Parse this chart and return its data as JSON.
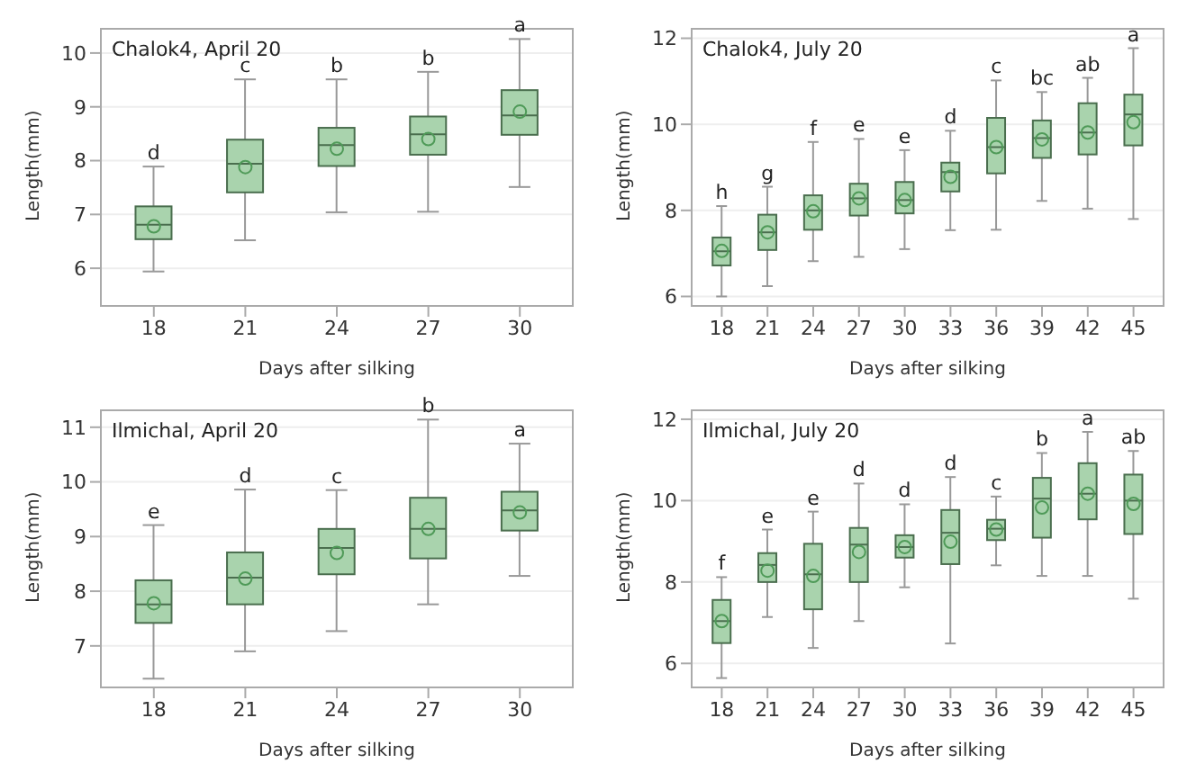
{
  "chart_data": [
    {
      "type": "box",
      "title": "Chalok4, April 20",
      "xlabel": "Days after silking",
      "ylabel": "Length(mm)",
      "categories": [
        "18",
        "21",
        "24",
        "27",
        "30"
      ],
      "ylim": [
        5.3,
        10.45
      ],
      "yticks": [
        6,
        7,
        8,
        9,
        10
      ],
      "grid": "y",
      "marker": "circle",
      "series": [
        {
          "color": "#a9d3ad",
          "boxes": [
            {
              "low": 5.94,
              "q1": 6.54,
              "median": 6.81,
              "q3": 7.15,
              "high": 7.89,
              "mean": 6.78
            },
            {
              "low": 6.52,
              "q1": 7.41,
              "median": 7.94,
              "q3": 8.39,
              "high": 9.51,
              "mean": 7.88
            },
            {
              "low": 7.04,
              "q1": 7.9,
              "median": 8.29,
              "q3": 8.61,
              "high": 9.51,
              "mean": 8.22
            },
            {
              "low": 7.05,
              "q1": 8.11,
              "median": 8.49,
              "q3": 8.82,
              "high": 9.65,
              "mean": 8.4
            },
            {
              "low": 7.51,
              "q1": 8.48,
              "median": 8.84,
              "q3": 9.31,
              "high": 10.26,
              "mean": 8.91
            }
          ]
        }
      ],
      "annotations": [
        {
          "text": "d",
          "x": "18",
          "y": 7.89
        },
        {
          "text": "c",
          "x": "21",
          "y": 9.51
        },
        {
          "text": "b",
          "x": "24",
          "y": 9.51
        },
        {
          "text": "b",
          "x": "27",
          "y": 9.65
        },
        {
          "text": "a",
          "x": "30",
          "y": 10.26
        }
      ]
    },
    {
      "type": "box",
      "title": "Chalok4, July 20",
      "xlabel": "Days after silking",
      "ylabel": "Length(mm)",
      "categories": [
        "18",
        "21",
        "24",
        "27",
        "30",
        "33",
        "36",
        "39",
        "42",
        "45"
      ],
      "ylim": [
        5.78,
        12.22
      ],
      "yticks": [
        6,
        8,
        10,
        12
      ],
      "grid": "y",
      "marker": "circle",
      "series": [
        {
          "color": "#a9d3ad",
          "boxes": [
            {
              "low": 6.0,
              "q1": 6.72,
              "median": 7.05,
              "q3": 7.37,
              "high": 8.1,
              "mean": 7.06
            },
            {
              "low": 6.24,
              "q1": 7.08,
              "median": 7.49,
              "q3": 7.9,
              "high": 8.55,
              "mean": 7.49
            },
            {
              "low": 6.82,
              "q1": 7.55,
              "median": 8.0,
              "q3": 8.35,
              "high": 9.59,
              "mean": 7.98
            },
            {
              "low": 6.92,
              "q1": 7.88,
              "median": 8.28,
              "q3": 8.62,
              "high": 9.66,
              "mean": 8.28
            },
            {
              "low": 7.1,
              "q1": 7.93,
              "median": 8.24,
              "q3": 8.66,
              "high": 9.4,
              "mean": 8.24
            },
            {
              "low": 7.54,
              "q1": 8.44,
              "median": 8.89,
              "q3": 9.11,
              "high": 9.85,
              "mean": 8.78
            },
            {
              "low": 7.55,
              "q1": 8.86,
              "median": 9.47,
              "q3": 10.15,
              "high": 11.02,
              "mean": 9.47
            },
            {
              "low": 8.22,
              "q1": 9.22,
              "median": 9.68,
              "q3": 10.09,
              "high": 10.75,
              "mean": 9.65
            },
            {
              "low": 8.04,
              "q1": 9.3,
              "median": 9.81,
              "q3": 10.49,
              "high": 11.08,
              "mean": 9.81
            },
            {
              "low": 7.8,
              "q1": 9.51,
              "median": 10.23,
              "q3": 10.69,
              "high": 11.77,
              "mean": 10.05
            }
          ]
        }
      ],
      "annotations": [
        {
          "text": "h",
          "x": "18",
          "y": 8.1
        },
        {
          "text": "g",
          "x": "21",
          "y": 8.55
        },
        {
          "text": "f",
          "x": "24",
          "y": 9.59
        },
        {
          "text": "e",
          "x": "27",
          "y": 9.66
        },
        {
          "text": "e",
          "x": "30",
          "y": 9.4
        },
        {
          "text": "d",
          "x": "33",
          "y": 9.85
        },
        {
          "text": "c",
          "x": "36",
          "y": 11.02
        },
        {
          "text": "bc",
          "x": "39",
          "y": 10.75
        },
        {
          "text": "ab",
          "x": "42",
          "y": 11.08
        },
        {
          "text": "a",
          "x": "45",
          "y": 11.77
        }
      ]
    },
    {
      "type": "box",
      "title": "Ilmichal, April 20",
      "xlabel": "Days after silking",
      "ylabel": "Length(mm)",
      "categories": [
        "18",
        "21",
        "24",
        "27",
        "30"
      ],
      "ylim": [
        6.24,
        11.31
      ],
      "yticks": [
        7,
        8,
        9,
        10,
        11
      ],
      "grid": "y",
      "marker": "circle",
      "series": [
        {
          "color": "#a9d3ad",
          "boxes": [
            {
              "low": 6.4,
              "q1": 7.42,
              "median": 7.76,
              "q3": 8.2,
              "high": 9.21,
              "mean": 7.78
            },
            {
              "low": 6.9,
              "q1": 7.76,
              "median": 8.25,
              "q3": 8.71,
              "high": 9.86,
              "mean": 8.23
            },
            {
              "low": 7.27,
              "q1": 8.31,
              "median": 8.79,
              "q3": 9.14,
              "high": 9.85,
              "mean": 8.7
            },
            {
              "low": 7.76,
              "q1": 8.6,
              "median": 9.14,
              "q3": 9.71,
              "high": 11.14,
              "mean": 9.14
            },
            {
              "low": 8.28,
              "q1": 9.11,
              "median": 9.48,
              "q3": 9.82,
              "high": 10.7,
              "mean": 9.44
            }
          ]
        }
      ],
      "annotations": [
        {
          "text": "e",
          "x": "18",
          "y": 9.21
        },
        {
          "text": "d",
          "x": "21",
          "y": 9.86
        },
        {
          "text": "c",
          "x": "24",
          "y": 9.85
        },
        {
          "text": "b",
          "x": "27",
          "y": 11.14
        },
        {
          "text": "a",
          "x": "30",
          "y": 10.7
        }
      ]
    },
    {
      "type": "box",
      "title": "Ilmichal, July 20",
      "xlabel": "Days after silking",
      "ylabel": "Length(mm)",
      "categories": [
        "18",
        "21",
        "24",
        "27",
        "30",
        "33",
        "36",
        "39",
        "42",
        "45"
      ],
      "ylim": [
        5.41,
        12.22
      ],
      "yticks": [
        6,
        8,
        10,
        12
      ],
      "grid": "y",
      "marker": "circle",
      "series": [
        {
          "color": "#a9d3ad",
          "boxes": [
            {
              "low": 5.64,
              "q1": 6.5,
              "median": 7.04,
              "q3": 7.56,
              "high": 8.12,
              "mean": 7.04
            },
            {
              "low": 7.14,
              "q1": 8.0,
              "median": 8.42,
              "q3": 8.71,
              "high": 9.29,
              "mean": 8.28
            },
            {
              "low": 6.38,
              "q1": 7.33,
              "median": 8.19,
              "q3": 8.94,
              "high": 9.73,
              "mean": 8.15
            },
            {
              "low": 7.04,
              "q1": 8.0,
              "median": 8.92,
              "q3": 9.33,
              "high": 10.42,
              "mean": 8.74
            },
            {
              "low": 7.87,
              "q1": 8.6,
              "median": 8.86,
              "q3": 9.15,
              "high": 9.91,
              "mean": 8.86
            },
            {
              "low": 6.49,
              "q1": 8.44,
              "median": 9.21,
              "q3": 9.77,
              "high": 10.58,
              "mean": 8.99
            },
            {
              "low": 8.41,
              "q1": 9.03,
              "median": 9.31,
              "q3": 9.53,
              "high": 10.1,
              "mean": 9.29
            },
            {
              "low": 8.15,
              "q1": 9.09,
              "median": 10.05,
              "q3": 10.56,
              "high": 11.17,
              "mean": 9.83
            },
            {
              "low": 8.15,
              "q1": 9.54,
              "median": 10.17,
              "q3": 10.92,
              "high": 11.69,
              "mean": 10.17
            },
            {
              "low": 7.59,
              "q1": 9.18,
              "median": 10.0,
              "q3": 10.64,
              "high": 11.22,
              "mean": 9.92
            }
          ]
        }
      ],
      "annotations": [
        {
          "text": "f",
          "x": "18",
          "y": 8.12
        },
        {
          "text": "e",
          "x": "21",
          "y": 9.29
        },
        {
          "text": "e",
          "x": "24",
          "y": 9.73
        },
        {
          "text": "d",
          "x": "27",
          "y": 10.42
        },
        {
          "text": "d",
          "x": "30",
          "y": 9.91
        },
        {
          "text": "d",
          "x": "33",
          "y": 10.58
        },
        {
          "text": "c",
          "x": "36",
          "y": 10.1
        },
        {
          "text": "b",
          "x": "39",
          "y": 11.17
        },
        {
          "text": "a",
          "x": "42",
          "y": 11.69
        },
        {
          "text": "ab",
          "x": "45",
          "y": 11.22
        }
      ]
    }
  ]
}
